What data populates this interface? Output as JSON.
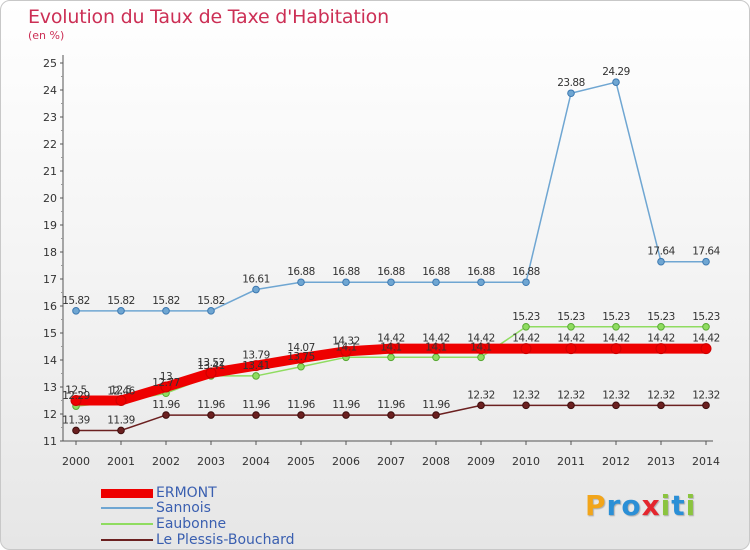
{
  "title": "Evolution du Taux de Taxe d'Habitation",
  "unit": "(en %)",
  "logo": {
    "letters": [
      "P",
      "r",
      "o",
      "x",
      "i",
      "t",
      "i"
    ],
    "colors": [
      "#f2a51a",
      "#2b8fd6",
      "#2b8fd6",
      "#e4262e",
      "#8bc43f",
      "#2b8fd6",
      "#8bc43f"
    ]
  },
  "chart_data": {
    "type": "line",
    "x": [
      "2000",
      "2001",
      "2002",
      "2003",
      "2004",
      "2005",
      "2006",
      "2007",
      "2008",
      "2009",
      "2010",
      "2011",
      "2012",
      "2013",
      "2014"
    ],
    "y_ticks": [
      "11",
      "12",
      "13",
      "14",
      "15",
      "16",
      "17",
      "18",
      "19",
      "20",
      "21",
      "22",
      "23",
      "24",
      "25"
    ],
    "ylim": [
      11,
      25
    ],
    "grid": false,
    "legend_position": "bottom-left",
    "series": [
      {
        "name": "ERMONT",
        "color": "#ee0000",
        "values": [
          12.5,
          12.5,
          13,
          13.52,
          13.79,
          14.07,
          14.32,
          14.42,
          14.42,
          14.42,
          14.42,
          14.42,
          14.42,
          14.42,
          14.42
        ],
        "labels": [
          "12.5",
          "12.5",
          "13",
          "13.52",
          "13.79",
          "14.07",
          "14.32",
          "14.42",
          "14.42",
          "14.42",
          "14.42",
          "14.42",
          "14.42",
          "14.42",
          "14.42"
        ]
      },
      {
        "name": "Sannois",
        "color": "#6fa6d2",
        "values": [
          15.82,
          15.82,
          15.82,
          15.82,
          16.61,
          16.88,
          16.88,
          16.88,
          16.88,
          16.88,
          16.88,
          23.88,
          24.29,
          17.64,
          17.64
        ],
        "labels": [
          "15.82",
          "15.82",
          "15.82",
          "15.82",
          "16.61",
          "16.88",
          "16.88",
          "16.88",
          "16.88",
          "16.88",
          "16.88",
          "23.88",
          "24.29",
          "17.64",
          "17.64"
        ]
      },
      {
        "name": "Eaubonne",
        "color": "#8fdc60",
        "values": [
          12.29,
          12.46,
          12.77,
          13.41,
          13.41,
          13.75,
          14.1,
          14.1,
          14.1,
          14.1,
          15.23,
          15.23,
          15.23,
          15.23,
          15.23
        ],
        "labels": [
          "12.29",
          "12.46",
          "12.77",
          "13.41",
          "13.41",
          "13.75",
          "14.1",
          "14.1",
          "14.1",
          "14.1",
          "15.23",
          "15.23",
          "15.23",
          "15.23",
          "15.23"
        ]
      },
      {
        "name": "Le Plessis-Bouchard",
        "color": "#6b2020",
        "values": [
          11.39,
          11.39,
          11.96,
          11.96,
          11.96,
          11.96,
          11.96,
          11.96,
          11.96,
          12.32,
          12.32,
          12.32,
          12.32,
          12.32,
          12.32
        ],
        "labels": [
          "11.39",
          "11.39",
          "11.96",
          "11.96",
          "11.96",
          "11.96",
          "11.96",
          "11.96",
          "11.96",
          "12.32",
          "12.32",
          "12.32",
          "12.32",
          "12.32",
          "12.32"
        ]
      }
    ]
  }
}
